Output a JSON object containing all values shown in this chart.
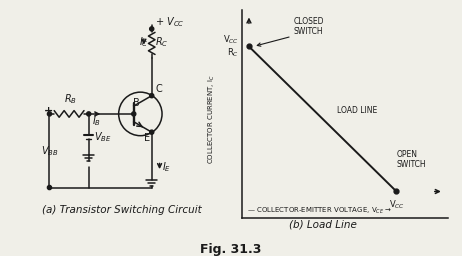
{
  "bg_color": "#f0efe8",
  "line_color": "#1a1a1a",
  "title": "Fig. 31.3",
  "subtitle_a": "(a) Transistor Switching Circuit",
  "subtitle_b": "(b) Load Line",
  "vcc_label": "+ V$_{CC}$",
  "ic_label": "I$_C$",
  "rc_label": "R$_C$",
  "rb_label": "R$_B$",
  "ib_label": "I$_B$",
  "vbe_label": "V$_{BE}$",
  "vbb_label": "V$_{BB}$",
  "ie_label": "I$_E$",
  "b_label": "B",
  "c_label": "C",
  "e_label": "E",
  "x_axis_label": "COLLECTOR-EMITTER VOLTAGE, V$_{CE}$",
  "y_axis_label": "COLLECTOR CURRENT, I$_C$",
  "font_size": 7,
  "title_font_size": 9
}
